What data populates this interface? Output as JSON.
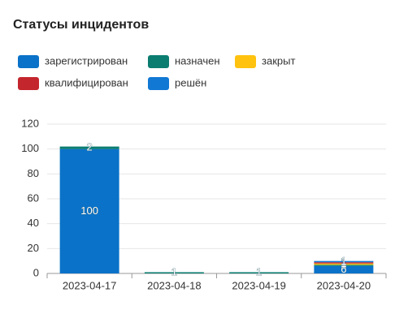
{
  "chart_data": {
    "type": "stacked_bar",
    "title": "Статусы инцидентов",
    "categories": [
      "2023-04-17",
      "2023-04-18",
      "2023-04-19",
      "2023-04-20"
    ],
    "series": [
      {
        "name": "зарегистрирован",
        "color": "#0a72c8",
        "values": [
          100,
          null,
          null,
          6
        ]
      },
      {
        "name": "назначен",
        "color": "#0b7d70",
        "values": [
          2,
          1,
          1,
          1
        ]
      },
      {
        "name": "закрыт",
        "color": "#ffc20e",
        "values": [
          null,
          null,
          null,
          1
        ]
      },
      {
        "name": "квалифицирован",
        "color": "#c4262e",
        "values": [
          null,
          null,
          null,
          1
        ]
      },
      {
        "name": "решён",
        "color": "#1178d4",
        "values": [
          null,
          null,
          null,
          1
        ]
      }
    ],
    "ylim": [
      0,
      120
    ],
    "yticks": [
      0,
      20,
      40,
      60,
      80,
      100,
      120
    ],
    "grid": true,
    "legend": "top"
  }
}
